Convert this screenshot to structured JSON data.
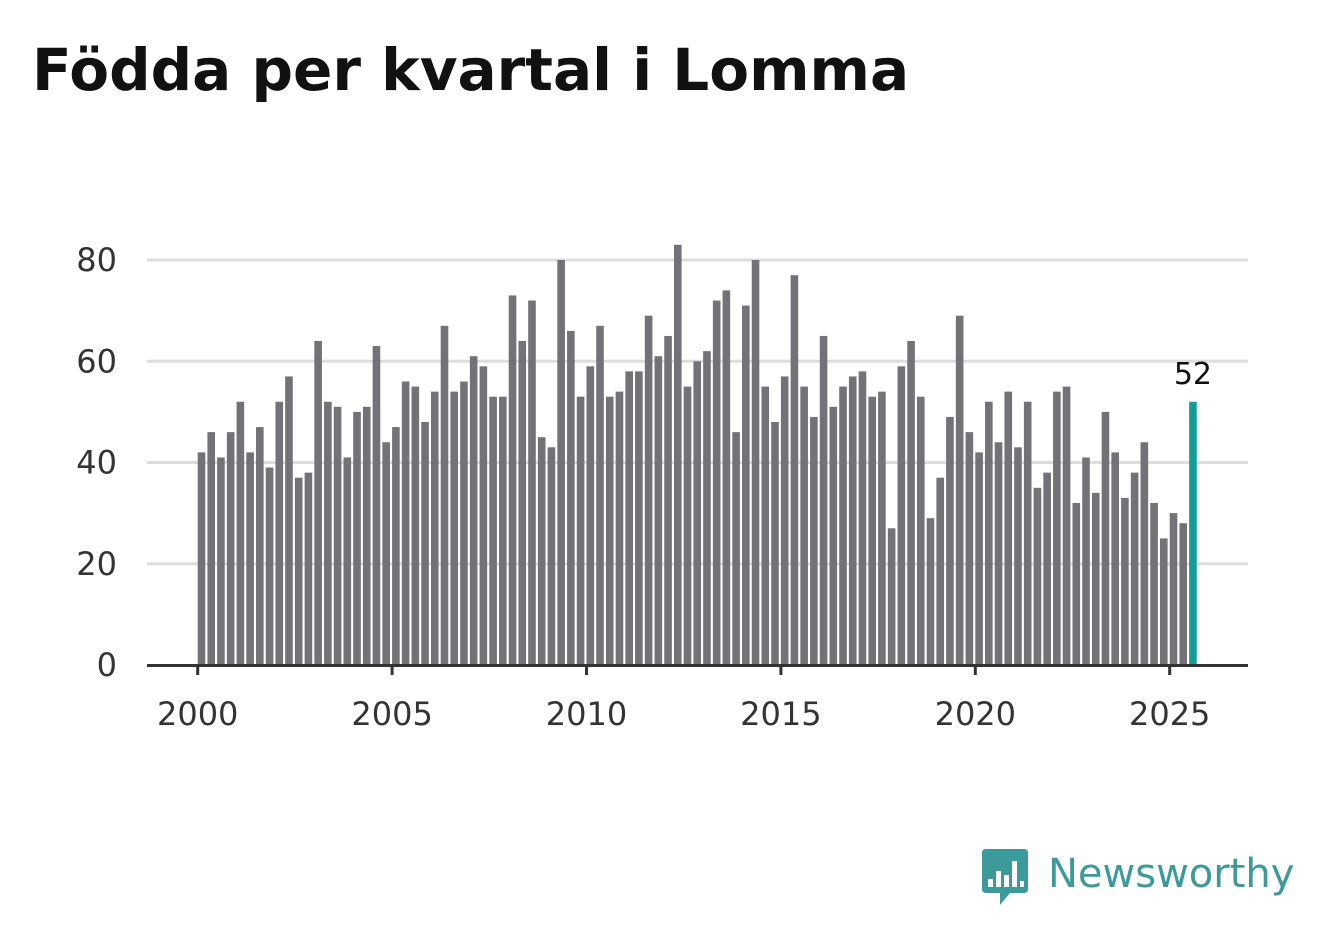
{
  "title": "Födda per kvartal i Lomma",
  "brand": {
    "name": "Newsworthy"
  },
  "colors": {
    "bar": "#737277",
    "highlight": "#129e98",
    "grid": "#dddddd",
    "axis": "#333333",
    "brand": "#3d9a9a"
  },
  "chart_data": {
    "type": "bar",
    "title": "Födda per kvartal i Lomma",
    "xlabel": "",
    "ylabel": "",
    "ylim": [
      0,
      80
    ],
    "yticks": [
      "0",
      "20",
      "40",
      "60",
      "80"
    ],
    "xticks": [
      "2000",
      "2005",
      "2010",
      "2015",
      "2020",
      "2025"
    ],
    "start_year": 2000,
    "periods_per_year": 4,
    "grid": true,
    "highlight_last": true,
    "highlight_label": "52",
    "values": [
      42,
      46,
      41,
      46,
      52,
      42,
      47,
      39,
      52,
      57,
      37,
      38,
      64,
      52,
      51,
      41,
      50,
      51,
      63,
      44,
      47,
      56,
      55,
      48,
      54,
      67,
      54,
      56,
      61,
      59,
      53,
      53,
      73,
      64,
      72,
      45,
      43,
      80,
      66,
      53,
      59,
      67,
      53,
      54,
      58,
      58,
      69,
      61,
      65,
      83,
      55,
      60,
      62,
      72,
      74,
      46,
      71,
      80,
      55,
      48,
      57,
      77,
      55,
      49,
      65,
      51,
      55,
      57,
      58,
      53,
      54,
      27,
      59,
      64,
      53,
      29,
      37,
      49,
      69,
      46,
      42,
      52,
      44,
      54,
      43,
      52,
      35,
      38,
      54,
      55,
      32,
      41,
      34,
      50,
      42,
      33,
      38,
      44,
      32,
      25,
      30,
      28,
      52
    ]
  }
}
